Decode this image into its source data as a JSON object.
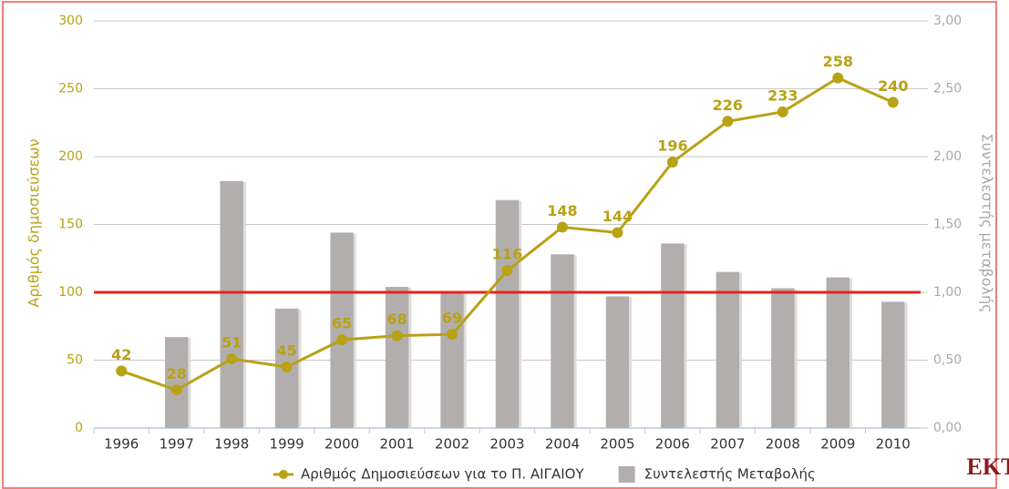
{
  "chart_data": {
    "type": "bar-line",
    "categories": [
      "1996",
      "1997",
      "1998",
      "1999",
      "2000",
      "2001",
      "2002",
      "2003",
      "2004",
      "2005",
      "2006",
      "2007",
      "2008",
      "2009",
      "2010"
    ],
    "series": [
      {
        "name": "Αριθμός Δημοσιεύσεων για το Π. ΑΙΓΑΙΟΥ",
        "type": "line",
        "color": "#b8a216",
        "axis": "y",
        "values": [
          42,
          28,
          51,
          45,
          65,
          68,
          69,
          116,
          148,
          144,
          196,
          226,
          233,
          258,
          240
        ]
      },
      {
        "name": "Συντελεστής Μεταβολής",
        "type": "bar",
        "color": "#b3aeae",
        "axis": "y2",
        "values": [
          null,
          0.67,
          1.82,
          0.88,
          1.44,
          1.04,
          1.01,
          1.68,
          1.28,
          0.97,
          1.36,
          1.15,
          1.03,
          1.11,
          0.93
        ]
      }
    ],
    "ylabel": "Αριθμός δημοσιεύσεων",
    "y2label": "Συντελεστής μεταβολής",
    "ylim": [
      0,
      300
    ],
    "yticks": [
      0,
      50,
      100,
      150,
      200,
      250,
      300
    ],
    "y2lim": [
      0,
      3
    ],
    "y2ticks": [
      {
        "value": 0,
        "label": "0,00"
      },
      {
        "value": 0.5,
        "label": "0,50"
      },
      {
        "value": 1,
        "label": "1,00"
      },
      {
        "value": 1.5,
        "label": "1,50"
      },
      {
        "value": 2,
        "label": "2,00"
      },
      {
        "value": 2.5,
        "label": "2,50"
      },
      {
        "value": 3,
        "label": "3,00"
      }
    ],
    "reference_line": {
      "value": 100,
      "color": "#e8231c"
    },
    "grid": true,
    "legend": "bottom",
    "logo": "EKT"
  }
}
